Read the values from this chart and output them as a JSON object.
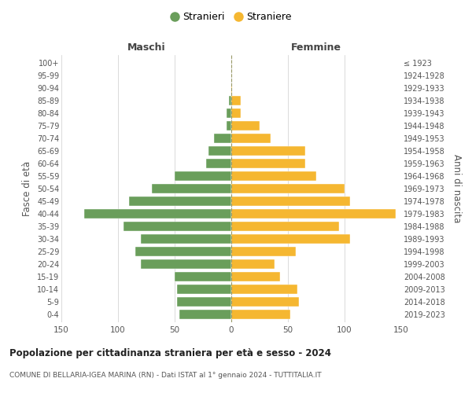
{
  "age_groups": [
    "100+",
    "95-99",
    "90-94",
    "85-89",
    "80-84",
    "75-79",
    "70-74",
    "65-69",
    "60-64",
    "55-59",
    "50-54",
    "45-49",
    "40-44",
    "35-39",
    "30-34",
    "25-29",
    "20-24",
    "15-19",
    "10-14",
    "5-9",
    "0-4"
  ],
  "birth_years": [
    "≤ 1923",
    "1924-1928",
    "1929-1933",
    "1934-1938",
    "1939-1943",
    "1944-1948",
    "1949-1953",
    "1954-1958",
    "1959-1963",
    "1964-1968",
    "1969-1973",
    "1974-1978",
    "1979-1983",
    "1984-1988",
    "1989-1993",
    "1994-1998",
    "1999-2003",
    "2004-2008",
    "2009-2013",
    "2014-2018",
    "2019-2023"
  ],
  "males": [
    0,
    0,
    0,
    2,
    4,
    4,
    15,
    20,
    22,
    50,
    70,
    90,
    130,
    95,
    80,
    85,
    80,
    50,
    48,
    48,
    46
  ],
  "females": [
    0,
    0,
    1,
    8,
    8,
    25,
    35,
    65,
    65,
    75,
    100,
    105,
    145,
    95,
    105,
    57,
    38,
    43,
    58,
    60,
    52
  ],
  "male_color": "#6a9e5b",
  "female_color": "#f5b731",
  "male_label": "Stranieri",
  "female_label": "Straniere",
  "title": "Popolazione per cittadinanza straniera per età e sesso - 2024",
  "subtitle": "COMUNE DI BELLARIA-IGEA MARINA (RN) - Dati ISTAT al 1° gennaio 2024 - TUTTITALIA.IT",
  "xlabel_left": "Maschi",
  "xlabel_right": "Femmine",
  "ylabel_left": "Fasce di età",
  "ylabel_right": "Anni di nascita",
  "xlim": 150,
  "background_color": "#ffffff",
  "grid_color": "#cccccc"
}
